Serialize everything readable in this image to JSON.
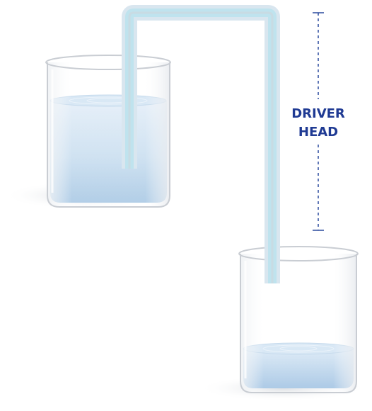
{
  "diagram": {
    "label_line_1": "DRIVER",
    "label_line_2": "HEAD"
  },
  "colors": {
    "label": "#1f3a93",
    "dashed_line": "#1f3a93",
    "water_light": "#dce9f6",
    "water_dark": "#9cc0e0",
    "water_surface": "#c9def1",
    "glass_outline": "#c8ccd2",
    "tube_outer": "#e3ebf2",
    "tube_inner": "#bfe0ec",
    "shadow": "#d9dde2"
  }
}
